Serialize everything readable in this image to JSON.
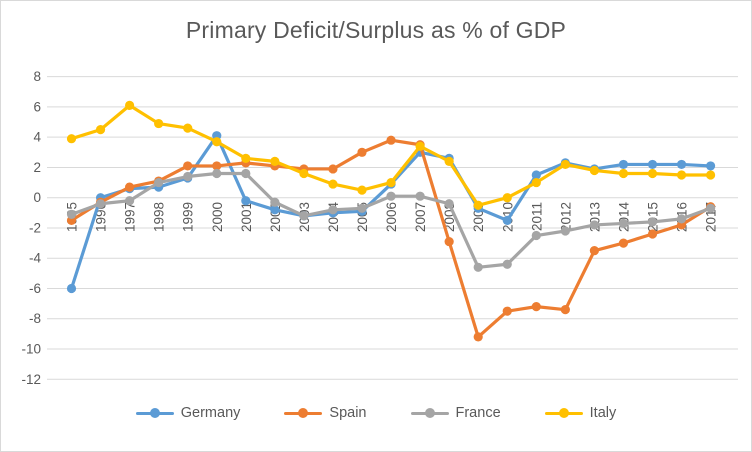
{
  "window": {
    "background_color": "#FFFFFF",
    "border_color": "#D9D9D9"
  },
  "chart_data": {
    "type": "line",
    "title": "Primary Deficit/Surplus as % of GDP",
    "xlabel": "",
    "ylabel": "",
    "x": [
      1995,
      1996,
      1997,
      1998,
      1999,
      2000,
      2001,
      2002,
      2003,
      2004,
      2005,
      2006,
      2007,
      2008,
      2009,
      2010,
      2011,
      2012,
      2013,
      2014,
      2015,
      2016,
      2017
    ],
    "series": [
      {
        "name": "Germany",
        "color": "#5B9BD5",
        "values": [
          -6.0,
          0.0,
          0.6,
          0.7,
          1.3,
          4.1,
          -0.2,
          -0.8,
          -1.2,
          -1.0,
          -0.9,
          0.9,
          3.0,
          2.6,
          -0.7,
          -1.5,
          1.5,
          2.3,
          1.9,
          2.2,
          2.2,
          2.2,
          2.1
        ]
      },
      {
        "name": "Spain",
        "color": "#ED7D31",
        "values": [
          -1.5,
          -0.3,
          0.7,
          1.1,
          2.1,
          2.1,
          2.3,
          2.1,
          1.9,
          1.9,
          3.0,
          3.8,
          3.5,
          -2.9,
          -9.2,
          -7.5,
          -7.2,
          -7.4,
          -3.5,
          -3.0,
          -2.4,
          -1.8,
          -0.6
        ]
      },
      {
        "name": "France",
        "color": "#A5A5A5",
        "values": [
          -1.1,
          -0.4,
          -0.2,
          1.0,
          1.4,
          1.6,
          1.6,
          -0.3,
          -1.2,
          -0.8,
          -0.7,
          0.1,
          0.1,
          -0.4,
          -4.6,
          -4.4,
          -2.5,
          -2.2,
          -1.8,
          -1.7,
          -1.6,
          -1.4,
          -0.7
        ]
      },
      {
        "name": "Italy",
        "color": "#FFC000",
        "values": [
          3.9,
          4.5,
          6.1,
          4.9,
          4.6,
          3.7,
          2.6,
          2.4,
          1.6,
          0.9,
          0.5,
          1.0,
          3.4,
          2.4,
          -0.5,
          0.0,
          1.0,
          2.2,
          1.8,
          1.6,
          1.6,
          1.5,
          1.5
        ]
      }
    ],
    "ylim": [
      -12,
      8
    ],
    "y_ticks": [
      8,
      6,
      4,
      2,
      0,
      -2,
      -4,
      -6,
      -8,
      -10,
      -12
    ],
    "grid": true,
    "legend_position": "bottom",
    "text_color": "#595959",
    "gridline_color": "#D9D9D9"
  }
}
